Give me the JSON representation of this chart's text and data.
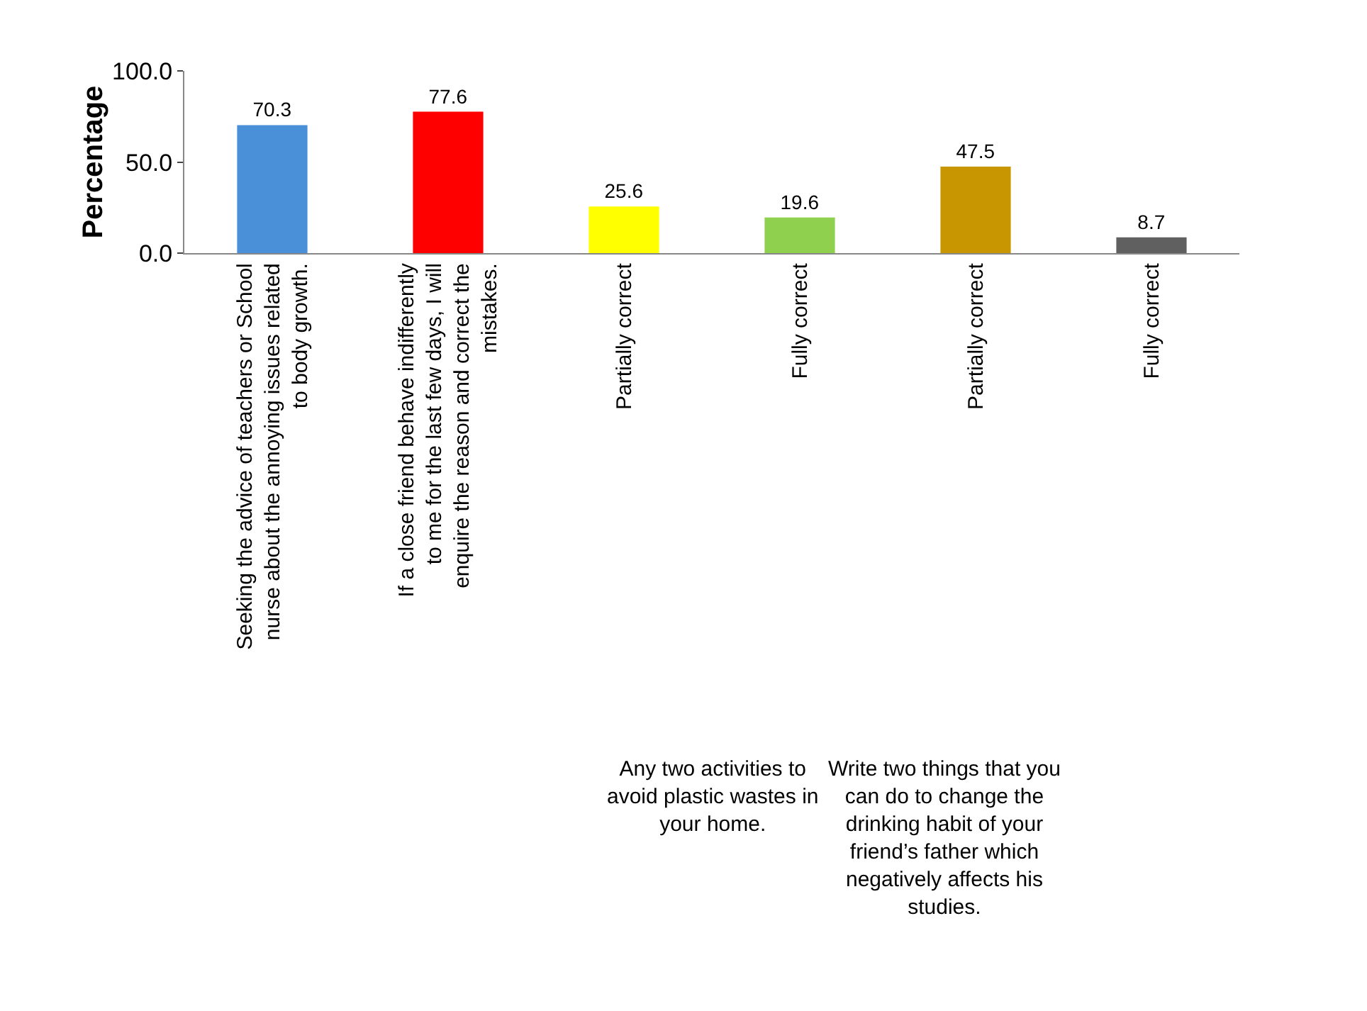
{
  "chart_data": {
    "type": "bar",
    "ylabel": "Percentage",
    "categories": [
      "Seeking the advice of teachers or School nurse about the annoying issues related to body growth.",
      "If a close friend behave indifferently to me for the last few days, I will enquire the reason and correct the mistakes.",
      "Partially correct",
      "Fully correct",
      "Partially correct",
      "Fully correct"
    ],
    "values": [
      70.3,
      77.6,
      25.6,
      19.6,
      47.5,
      8.7
    ],
    "colors": [
      "#4a90d9",
      "#ff0000",
      "#ffff00",
      "#8fd14f",
      "#c89600",
      "#606060"
    ],
    "data_labels": true,
    "ylim": [
      0,
      100
    ],
    "yticks": [
      {
        "value": 0,
        "label": "0.0"
      },
      {
        "value": 50,
        "label": "50.0"
      },
      {
        "value": 100,
        "label": "100.0"
      }
    ],
    "grid": false,
    "legend": false,
    "annotations": [
      "Any two activities to avoid plastic wastes in your home.",
      "Write two things that you can do to change the drinking habit of your friend’s father which negatively affects his studies."
    ]
  }
}
